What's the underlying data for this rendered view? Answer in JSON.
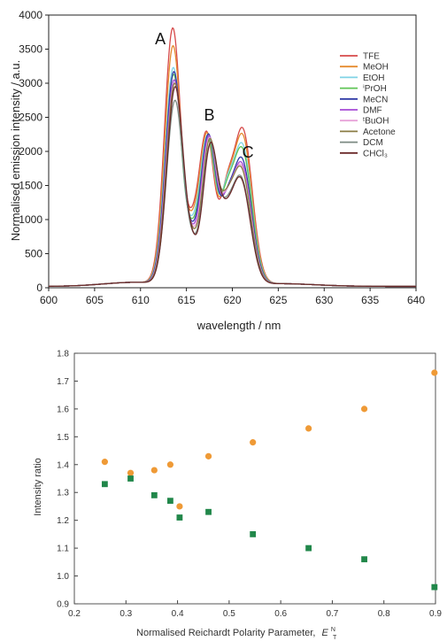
{
  "chart_data": [
    {
      "type": "line",
      "xlabel": "wavelength / nm",
      "ylabel": "Normalised emission intensity / a.u.",
      "xlim": [
        600,
        640
      ],
      "ylim": [
        0,
        4000
      ],
      "x_ticks": [
        "600",
        "605",
        "610",
        "615",
        "620",
        "625",
        "630",
        "635",
        "640"
      ],
      "y_ticks": [
        "0",
        "500",
        "1000",
        "1500",
        "2000",
        "2500",
        "3000",
        "3500",
        "4000"
      ],
      "annotations": [
        {
          "text": "A",
          "x": 613.7
        },
        {
          "text": "B",
          "x": 617.5
        },
        {
          "text": "C",
          "x": 621.7
        }
      ],
      "legend_position": "right",
      "series": [
        {
          "name": "TFE",
          "color": "#d64a4a",
          "A": 3760,
          "B": 2240,
          "C": 2270,
          "D1": 1100,
          "D2": 1760
        },
        {
          "name": "MeOH",
          "color": "#e58b2f",
          "A": 3500,
          "B": 2220,
          "C": 2180,
          "D1": 1080,
          "D2": 1700
        },
        {
          "name": "EtOH",
          "color": "#7fd3e6",
          "A": 3180,
          "B": 2180,
          "C": 2040,
          "D1": 1020,
          "D2": 1680
        },
        {
          "name": "ⁱPrOH",
          "color": "#5fc456",
          "A": 3080,
          "B": 2150,
          "C": 1980,
          "D1": 980,
          "D2": 1560
        },
        {
          "name": "MeCN",
          "color": "#2f3aa6",
          "A": 3120,
          "B": 2200,
          "C": 1830,
          "D1": 900,
          "D2": 1350
        },
        {
          "name": "DMF",
          "color": "#a64ad6",
          "A": 3000,
          "B": 2170,
          "C": 1760,
          "D1": 880,
          "D2": 1300
        },
        {
          "name": "ᵗBuOH",
          "color": "#e7a2d8",
          "A": 2950,
          "B": 2140,
          "C": 1720,
          "D1": 860,
          "D2": 1260
        },
        {
          "name": "Acetone",
          "color": "#8b7d45",
          "A": 2950,
          "B": 2120,
          "C": 1690,
          "D1": 840,
          "D2": 1220
        },
        {
          "name": "DCM",
          "color": "#7b8a82",
          "A": 2700,
          "B": 2050,
          "C": 1560,
          "D1": 780,
          "D2": 1010
        },
        {
          "name": "CHCl₃",
          "color": "#6b2a2a",
          "A": 2900,
          "B": 2060,
          "C": 1540,
          "D1": 760,
          "D2": 880
        }
      ]
    },
    {
      "type": "scatter",
      "xlabel": "Normalised Reichardt Polarity Parameter,",
      "xlabel_symbol": "E",
      "xlabel_superscript": "N",
      "xlabel_subscript": "T",
      "ylabel": "Intensity ratio",
      "xlim": [
        0.2,
        0.9
      ],
      "ylim": [
        0.9,
        1.8
      ],
      "x_ticks": [
        "0.2",
        "0.3",
        "0.4",
        "0.5",
        "0.6",
        "0.7",
        "0.8",
        "0.9"
      ],
      "y_ticks": [
        "0.9",
        "1.0",
        "1.1",
        "1.2",
        "1.3",
        "1.4",
        "1.5",
        "1.6",
        "1.7",
        "1.8"
      ],
      "series": [
        {
          "color": "#ef9a36",
          "marker": "circle",
          "points": [
            {
              "x": 0.259,
              "y": 1.41
            },
            {
              "x": 0.309,
              "y": 1.37
            },
            {
              "x": 0.355,
              "y": 1.38
            },
            {
              "x": 0.386,
              "y": 1.4
            },
            {
              "x": 0.404,
              "y": 1.25
            },
            {
              "x": 0.46,
              "y": 1.43
            },
            {
              "x": 0.546,
              "y": 1.48
            },
            {
              "x": 0.654,
              "y": 1.53
            },
            {
              "x": 0.762,
              "y": 1.6
            },
            {
              "x": 0.898,
              "y": 1.73
            }
          ]
        },
        {
          "color": "#21874a",
          "marker": "square",
          "points": [
            {
              "x": 0.259,
              "y": 1.33
            },
            {
              "x": 0.309,
              "y": 1.35
            },
            {
              "x": 0.355,
              "y": 1.29
            },
            {
              "x": 0.386,
              "y": 1.27
            },
            {
              "x": 0.404,
              "y": 1.21
            },
            {
              "x": 0.46,
              "y": 1.23
            },
            {
              "x": 0.546,
              "y": 1.15
            },
            {
              "x": 0.654,
              "y": 1.1
            },
            {
              "x": 0.762,
              "y": 1.06
            },
            {
              "x": 0.898,
              "y": 0.96
            }
          ]
        }
      ]
    }
  ]
}
